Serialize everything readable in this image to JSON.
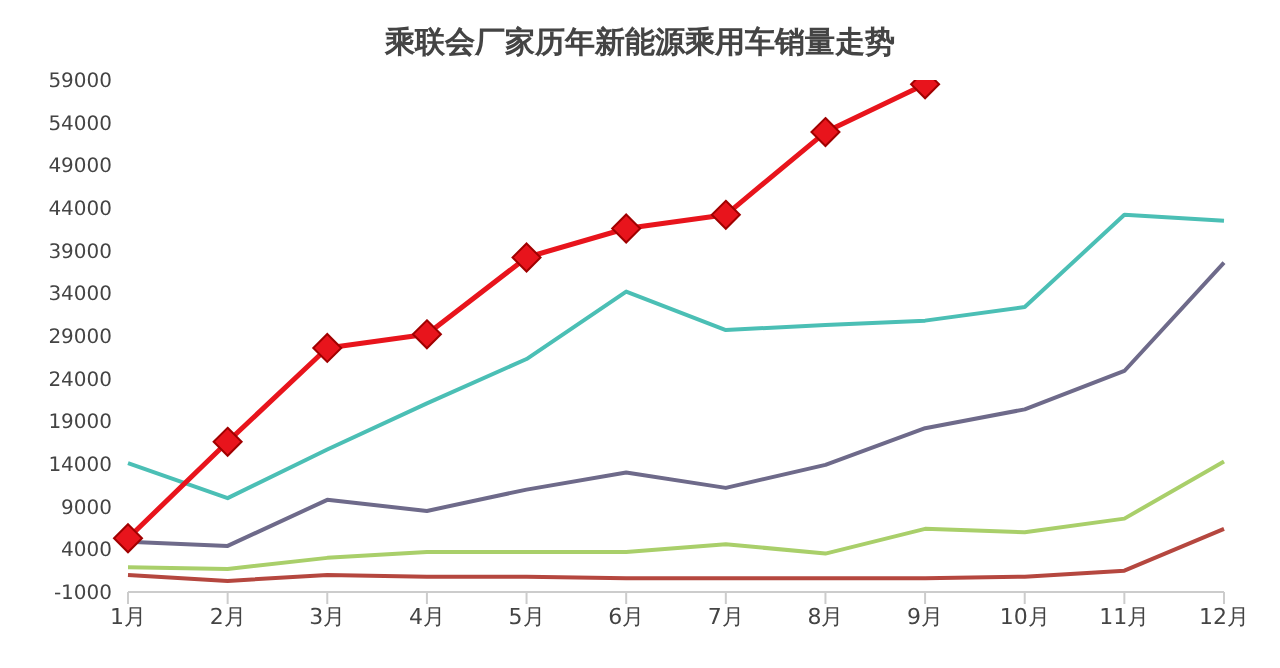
{
  "chart_data": {
    "type": "line",
    "title": "乘联会厂家历年新能源乘用车销量走势",
    "categories": [
      "1月",
      "2月",
      "3月",
      "4月",
      "5月",
      "6月",
      "7月",
      "8月",
      "9月",
      "10月",
      "11月",
      "12月"
    ],
    "ylim": [
      -1000,
      59000
    ],
    "yticks": [
      -1000,
      4000,
      9000,
      14000,
      19000,
      24000,
      29000,
      34000,
      39000,
      44000,
      49000,
      54000,
      59000
    ],
    "grid": false,
    "legend": false,
    "line_style": "solid",
    "series": [
      {
        "color": "#b5473f",
        "marker": "none",
        "values": [
          1000,
          300,
          1000,
          800,
          800,
          600,
          600,
          600,
          600,
          800,
          1500,
          6400
        ]
      },
      {
        "color": "#a9cf6a",
        "marker": "none",
        "values": [
          1900,
          1700,
          3000,
          3700,
          3700,
          3700,
          4600,
          3500,
          6400,
          6000,
          7600,
          14300
        ]
      },
      {
        "color": "#6e6a8a",
        "marker": "none",
        "values": [
          4900,
          4400,
          9800,
          8500,
          11000,
          13000,
          11200,
          13900,
          18200,
          20400,
          24900,
          37600
        ]
      },
      {
        "color": "#4bbfb5",
        "marker": "none",
        "values": [
          14100,
          10000,
          15700,
          21100,
          26300,
          34200,
          29700,
          30300,
          30800,
          32400,
          43200,
          42500
        ]
      },
      {
        "color": "#e8141c",
        "marker": "diamond",
        "values": [
          5300,
          16600,
          27600,
          29200,
          38200,
          41600,
          43200,
          52900,
          58500,
          null,
          null,
          null
        ]
      }
    ]
  }
}
